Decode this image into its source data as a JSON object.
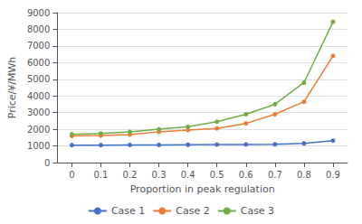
{
  "chart_data": {
    "type": "line",
    "xlabel": "Proportion in peak regulation",
    "ylabel": "Price/¥/MWh",
    "x": [
      0,
      0.1,
      0.2,
      0.3,
      0.4,
      0.5,
      0.6,
      0.7,
      0.8,
      0.9
    ],
    "series": [
      {
        "name": "Case 1",
        "color": "#4472C4",
        "values": [
          1050,
          1050,
          1060,
          1060,
          1070,
          1080,
          1090,
          1100,
          1150,
          1320
        ]
      },
      {
        "name": "Case 2",
        "color": "#ED7D31",
        "values": [
          1600,
          1620,
          1680,
          1850,
          1950,
          2050,
          2350,
          2900,
          3650,
          6400
        ]
      },
      {
        "name": "Case 3",
        "color": "#70AD47",
        "values": [
          1700,
          1750,
          1850,
          2000,
          2150,
          2450,
          2900,
          3500,
          4800,
          8450
        ]
      }
    ],
    "xlim": [
      -0.05,
      0.95
    ],
    "xticks": [
      0,
      0.1,
      0.2,
      0.3,
      0.4,
      0.5,
      0.6,
      0.7,
      0.8,
      0.9
    ],
    "ylim": [
      0,
      9000
    ],
    "yticks": [
      0,
      1000,
      2000,
      3000,
      4000,
      5000,
      6000,
      7000,
      8000,
      9000
    ],
    "grid": "y",
    "legend": "bottom",
    "marker": "circle"
  }
}
